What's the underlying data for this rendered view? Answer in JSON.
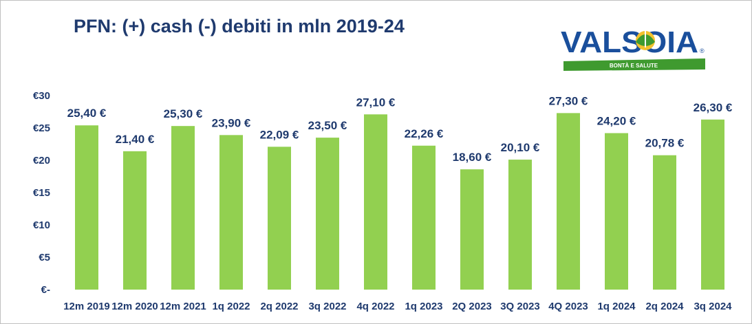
{
  "title": "PFN: (+) cash (-) debiti in mln 2019-24",
  "logo": {
    "text": "VALSOIA",
    "tagline": "BONTÀ E SALUTE",
    "mark": "®"
  },
  "colors": {
    "bar": "#92d050",
    "text": "#1f3a6e",
    "logo_blue": "#1a4f9c",
    "logo_green": "#3f9a2f"
  },
  "chart_data": {
    "type": "bar",
    "title": "PFN: (+) cash (-) debiti in mln 2019-24",
    "xlabel": "",
    "ylabel": "",
    "ylim": [
      0,
      30
    ],
    "grid": false,
    "legend": "none",
    "y_ticks": [
      {
        "value": 0,
        "label": "€-"
      },
      {
        "value": 5,
        "label": "€5"
      },
      {
        "value": 10,
        "label": "€10"
      },
      {
        "value": 15,
        "label": "€15"
      },
      {
        "value": 20,
        "label": "€20"
      },
      {
        "value": 25,
        "label": "€25"
      },
      {
        "value": 30,
        "label": "€30"
      }
    ],
    "categories": [
      "12m 2019",
      "12m 2020",
      "12m 2021",
      "1q 2022",
      "2q 2022",
      "3q 2022",
      "4q 2022",
      "1q 2023",
      "2Q 2023",
      "3Q 2023",
      "4Q 2023",
      "1q 2024",
      "2q 2024",
      "3q 2024"
    ],
    "values": [
      25.4,
      21.4,
      25.3,
      23.9,
      22.09,
      23.5,
      27.1,
      22.26,
      18.6,
      20.1,
      27.3,
      24.2,
      20.78,
      26.3
    ],
    "data_labels": [
      "25,40 €",
      "21,40 €",
      "25,30 €",
      "23,90 €",
      "22,09 €",
      "23,50 €",
      "27,10 €",
      "22,26 €",
      "18,60 €",
      "20,10 €",
      "27,30 €",
      "24,20 €",
      "20,78 €",
      "26,30 €"
    ]
  }
}
